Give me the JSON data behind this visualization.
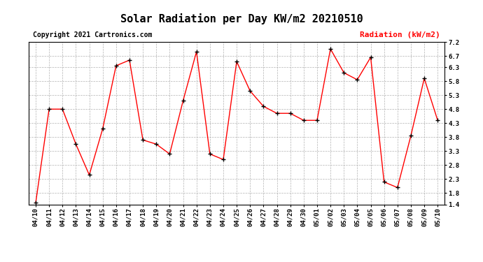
{
  "title": "Solar Radiation per Day KW/m2 20210510",
  "copyright_text": "Copyright 2021 Cartronics.com",
  "legend_label": "Radiation (kW/m2)",
  "line_color": "red",
  "marker_color": "black",
  "background_color": "white",
  "grid_color": "#aaaaaa",
  "dates": [
    "04/10",
    "04/11",
    "04/12",
    "04/13",
    "04/14",
    "04/15",
    "04/16",
    "04/17",
    "04/18",
    "04/19",
    "04/20",
    "04/21",
    "04/22",
    "04/23",
    "04/24",
    "04/25",
    "04/26",
    "04/27",
    "04/28",
    "04/29",
    "04/30",
    "05/01",
    "05/02",
    "05/03",
    "05/04",
    "05/05",
    "05/06",
    "05/07",
    "05/08",
    "05/09",
    "05/10"
  ],
  "values": [
    1.45,
    4.8,
    4.8,
    3.55,
    2.45,
    4.1,
    6.35,
    6.55,
    3.7,
    3.55,
    3.2,
    5.1,
    6.85,
    3.2,
    3.0,
    6.5,
    5.45,
    4.9,
    4.65,
    4.65,
    4.4,
    4.4,
    6.95,
    6.1,
    5.85,
    6.65,
    2.2,
    2.0,
    3.85,
    5.9,
    4.4
  ],
  "ylim": [
    1.4,
    7.2
  ],
  "yticks": [
    1.4,
    1.8,
    2.3,
    2.8,
    3.3,
    3.8,
    4.3,
    4.8,
    5.3,
    5.8,
    6.3,
    6.7,
    7.2
  ],
  "title_fontsize": 11,
  "legend_fontsize": 8,
  "copyright_fontsize": 7,
  "tick_fontsize": 6.5
}
